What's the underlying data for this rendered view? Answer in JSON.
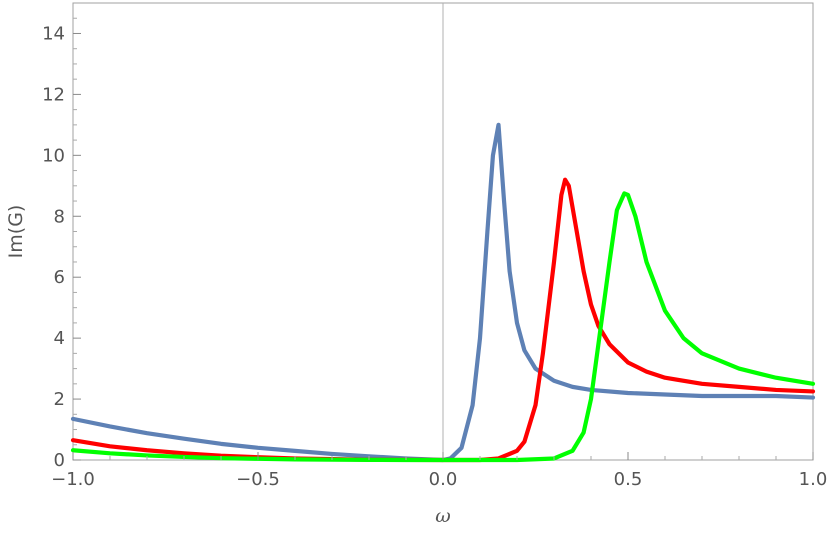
{
  "chart_data": {
    "type": "line",
    "xlabel": "ω",
    "ylabel": "Im(G)",
    "xlim": [
      -1.0,
      1.0
    ],
    "ylim": [
      0,
      15
    ],
    "x_ticks": [
      -1.0,
      -0.5,
      0.0,
      0.5,
      1.0
    ],
    "x_tick_labels": [
      "−1.0",
      "−0.5",
      "0.0",
      "0.5",
      "1.0"
    ],
    "y_ticks": [
      0,
      2,
      4,
      6,
      8,
      10,
      12,
      14
    ],
    "y_tick_labels": [
      "0",
      "2",
      "4",
      "6",
      "8",
      "10",
      "12",
      "14"
    ],
    "grid": false,
    "frame": true,
    "series": [
      {
        "color": "#5E81B5",
        "x": [
          -1.0,
          -0.9,
          -0.8,
          -0.7,
          -0.6,
          -0.5,
          -0.4,
          -0.3,
          -0.2,
          -0.1,
          0.0,
          0.02,
          0.05,
          0.08,
          0.1,
          0.12,
          0.135,
          0.15,
          0.165,
          0.18,
          0.2,
          0.22,
          0.25,
          0.3,
          0.35,
          0.4,
          0.5,
          0.6,
          0.7,
          0.8,
          0.9,
          1.0
        ],
        "y": [
          1.35,
          1.1,
          0.88,
          0.7,
          0.53,
          0.4,
          0.3,
          0.2,
          0.12,
          0.05,
          0.0,
          0.05,
          0.4,
          1.8,
          4.0,
          7.5,
          10.0,
          11.0,
          8.5,
          6.2,
          4.5,
          3.6,
          3.0,
          2.6,
          2.4,
          2.3,
          2.2,
          2.15,
          2.1,
          2.1,
          2.1,
          2.05
        ]
      },
      {
        "color": "#FF0000",
        "x": [
          -1.0,
          -0.9,
          -0.8,
          -0.7,
          -0.6,
          -0.5,
          -0.4,
          -0.3,
          -0.2,
          -0.1,
          0.0,
          0.1,
          0.15,
          0.2,
          0.22,
          0.25,
          0.27,
          0.3,
          0.32,
          0.33,
          0.34,
          0.36,
          0.38,
          0.4,
          0.42,
          0.45,
          0.5,
          0.55,
          0.6,
          0.7,
          0.8,
          0.9,
          1.0
        ],
        "y": [
          0.65,
          0.45,
          0.32,
          0.22,
          0.14,
          0.09,
          0.05,
          0.03,
          0.01,
          0.005,
          0.0,
          0.0,
          0.05,
          0.3,
          0.6,
          1.8,
          3.5,
          6.5,
          8.7,
          9.2,
          9.0,
          7.6,
          6.2,
          5.1,
          4.4,
          3.8,
          3.2,
          2.9,
          2.7,
          2.5,
          2.4,
          2.3,
          2.25
        ]
      },
      {
        "color": "#00FF00",
        "x": [
          -1.0,
          -0.9,
          -0.8,
          -0.7,
          -0.6,
          -0.5,
          -0.4,
          -0.3,
          -0.2,
          -0.1,
          0.0,
          0.1,
          0.2,
          0.3,
          0.35,
          0.38,
          0.4,
          0.42,
          0.45,
          0.47,
          0.49,
          0.5,
          0.52,
          0.55,
          0.6,
          0.65,
          0.7,
          0.8,
          0.9,
          1.0
        ],
        "y": [
          0.32,
          0.22,
          0.15,
          0.1,
          0.06,
          0.04,
          0.02,
          0.01,
          0.005,
          0.0,
          0.0,
          0.0,
          0.0,
          0.05,
          0.3,
          0.9,
          2.0,
          3.8,
          6.5,
          8.2,
          8.75,
          8.7,
          8.0,
          6.5,
          4.9,
          4.0,
          3.5,
          3.0,
          2.7,
          2.5
        ]
      }
    ]
  }
}
